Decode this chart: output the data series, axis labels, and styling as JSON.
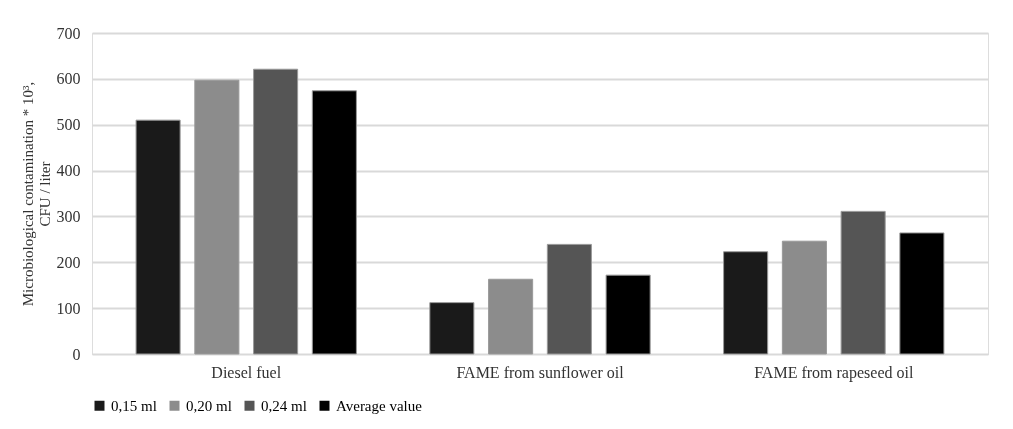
{
  "chart_data": {
    "type": "bar",
    "ylabel": "Microbiological contamination * 10³, CFU / liter",
    "categories": [
      "Diesel fuel",
      "FAME from sunflower oil",
      "FAME from rapeseed oil"
    ],
    "series": [
      {
        "name": "0,15 ml",
        "color": "#1a1a1a",
        "values": [
          510,
          112,
          223
        ]
      },
      {
        "name": "0,20 ml",
        "color": "#8c8c8c",
        "values": [
          597,
          163,
          246
        ]
      },
      {
        "name": "0,24 ml",
        "color": "#555555",
        "values": [
          621,
          239,
          311
        ]
      },
      {
        "name": "Average value",
        "color": "#000000",
        "values": [
          574,
          172,
          264
        ]
      }
    ],
    "ylim": [
      0,
      700
    ],
    "yticks": [
      0,
      100,
      200,
      300,
      400,
      500,
      600,
      700
    ],
    "grid": "y",
    "legend": "bottom"
  }
}
